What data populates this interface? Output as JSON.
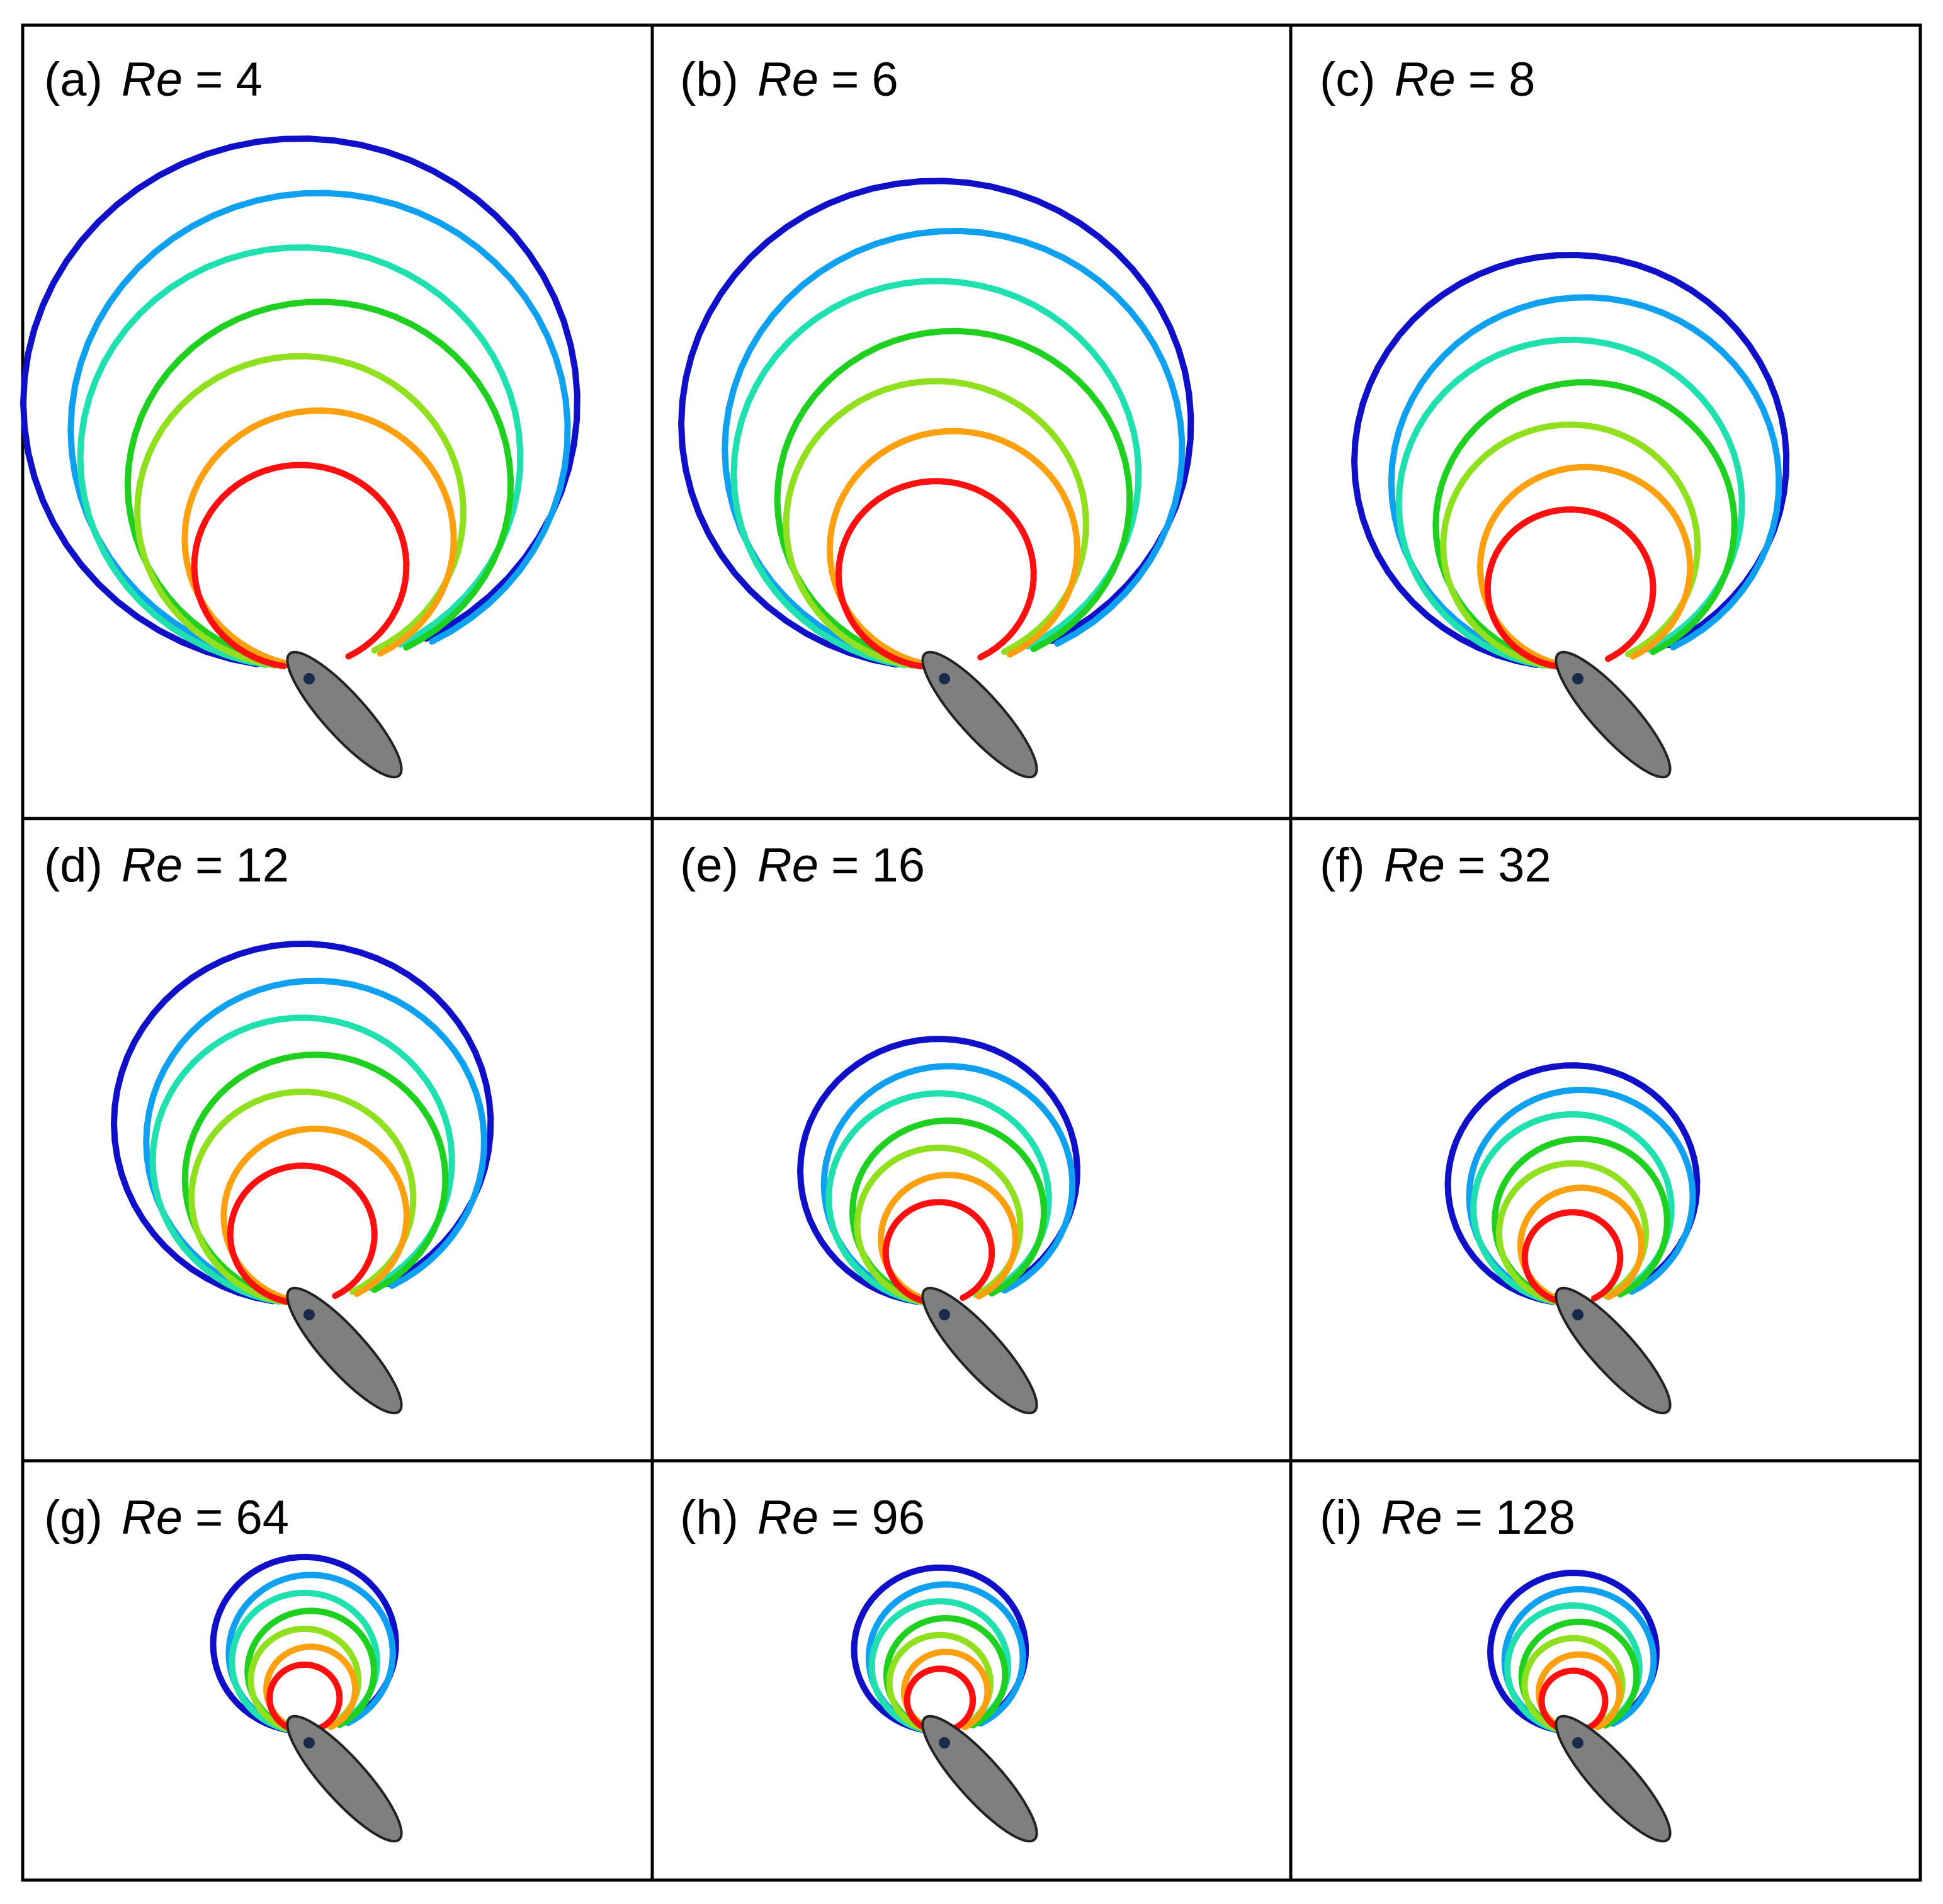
{
  "panels": [
    {
      "label": "(a)",
      "re_symbol": "Re",
      "equals": "=",
      "re_value": "4",
      "size": 1.0
    },
    {
      "label": "(b)",
      "re_symbol": "Re",
      "equals": "=",
      "re_value": "6",
      "size": 0.92
    },
    {
      "label": "(c)",
      "re_symbol": "Re",
      "equals": "=",
      "re_value": "8",
      "size": 0.78
    },
    {
      "label": "(d)",
      "re_symbol": "Re",
      "equals": "=",
      "re_value": "12",
      "size": 0.68
    },
    {
      "label": "(e)",
      "re_symbol": "Re",
      "equals": "=",
      "re_value": "16",
      "size": 0.5
    },
    {
      "label": "(f)",
      "re_symbol": "Re",
      "equals": "=",
      "re_value": "32",
      "size": 0.45
    },
    {
      "label": "(g)",
      "re_symbol": "Re",
      "equals": "=",
      "re_value": "64",
      "size": 0.33
    },
    {
      "label": "(h)",
      "re_symbol": "Re",
      "equals": "=",
      "re_value": "96",
      "size": 0.31
    },
    {
      "label": "(i)",
      "re_symbol": "Re",
      "equals": "=",
      "re_value": "128",
      "size": 0.3
    }
  ],
  "colors": {
    "frame": "#000000",
    "body": "#7f7f7f",
    "trajectory": [
      "#1010c8",
      "#10a0f0",
      "#20e0b0",
      "#20d020",
      "#90e020",
      "#ffa010",
      "#ff1010"
    ]
  }
}
